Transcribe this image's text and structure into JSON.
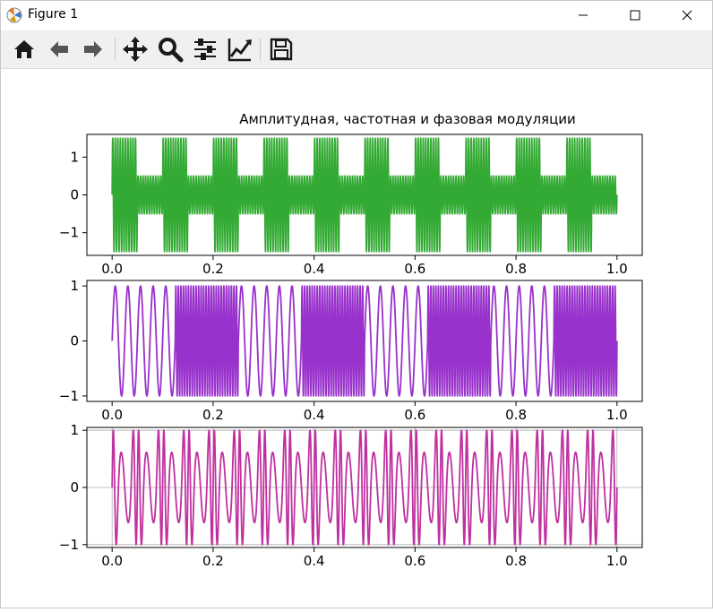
{
  "window": {
    "title": "Figure 1"
  },
  "toolbar": {
    "buttons": [
      {
        "icon": "home-icon"
      },
      {
        "icon": "back-arrow-icon"
      },
      {
        "icon": "forward-arrow-icon"
      },
      {
        "icon": "pan-move-icon"
      },
      {
        "icon": "zoom-magnifier-icon"
      },
      {
        "icon": "configure-subplots-icon"
      },
      {
        "icon": "edit-axis-icon"
      },
      {
        "icon": "save-floppy-icon"
      }
    ]
  },
  "colors": {
    "green": "#33aa33",
    "purple": "#9932cc",
    "magenta": "#c030a0",
    "grid": "#b0b0b0"
  },
  "chart_data": [
    {
      "type": "line",
      "title": "Амплитудная, частотная и фазовая модуляции",
      "xlim": [
        -0.05,
        1.05
      ],
      "ylim": [
        -1.6,
        1.6
      ],
      "xticks": [
        0.0,
        0.2,
        0.4,
        0.6,
        0.8,
        1.0
      ],
      "xtick_labels": [
        "0.0",
        "0.2",
        "0.4",
        "0.6",
        "0.8",
        "1.0"
      ],
      "yticks": [
        1,
        0,
        -1
      ],
      "ytick_labels": [
        "1",
        "0",
        "−1"
      ],
      "grid": false,
      "series": [
        {
          "color": "#33aa33",
          "formula": "y = A(t)·sin(2π·200·t), A = 1.5 in first half of each 0.1 period, else 0.5",
          "x_range": [
            0,
            1
          ],
          "carrier_hz": 200,
          "amplitudes": [
            1.5,
            0.5
          ],
          "period": 0.1
        }
      ]
    },
    {
      "type": "line",
      "title": "",
      "xlim": [
        -0.05,
        1.05
      ],
      "ylim": [
        -1.1,
        1.1
      ],
      "xticks": [
        0.0,
        0.2,
        0.4,
        0.6,
        0.8,
        1.0
      ],
      "xtick_labels": [
        "0.0",
        "0.2",
        "0.4",
        "0.6",
        "0.8",
        "1.0"
      ],
      "yticks": [
        1,
        0,
        -1
      ],
      "ytick_labels": [
        "1",
        "0",
        "−1"
      ],
      "grid": false,
      "series": [
        {
          "color": "#9932cc",
          "formula": "y = sin(2π·f(t)·t), f = 40 in first half of each 0.25 period, else 200",
          "x_range": [
            0,
            1
          ],
          "low_hz": 40,
          "high_hz": 200,
          "period": 0.25
        }
      ]
    },
    {
      "type": "line",
      "title": "",
      "xlim": [
        -0.05,
        1.05
      ],
      "ylim": [
        -1.05,
        1.05
      ],
      "xticks": [
        0.0,
        0.2,
        0.4,
        0.6,
        0.8,
        1.0
      ],
      "xtick_labels": [
        "0.0",
        "0.2",
        "0.4",
        "0.6",
        "0.8",
        "1.0"
      ],
      "yticks": [
        1,
        0,
        -1
      ],
      "ytick_labels": [
        "1",
        "0",
        "−1"
      ],
      "grid": true,
      "series": [
        {
          "color": "#c030a0",
          "formula": "y = sin(2π·40·t + π·sin(2π·20·t))",
          "x_range": [
            0,
            1
          ],
          "carrier_hz": 40,
          "mod_hz": 20,
          "phase_index": 3.14159
        }
      ]
    }
  ]
}
